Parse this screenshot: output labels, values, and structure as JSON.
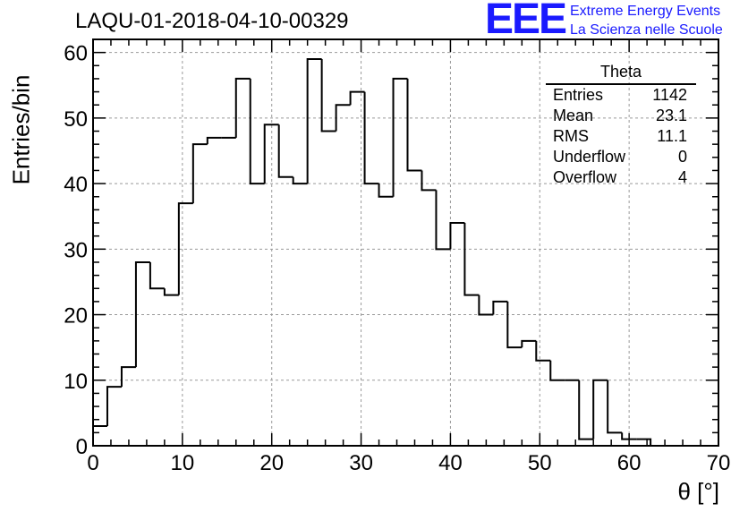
{
  "title": "LAQU-01-2018-04-10-00329",
  "logo": "EEE",
  "org_line1": "Extreme Energy Events",
  "org_line2": "La Scienza nelle Scuole",
  "stats": {
    "name": "Theta",
    "rows": [
      {
        "label": "Entries",
        "value": "1142"
      },
      {
        "label": "Mean",
        "value": "23.1"
      },
      {
        "label": "RMS",
        "value": "11.1"
      },
      {
        "label": "Underflow",
        "value": "0"
      },
      {
        "label": "Overflow",
        "value": "4"
      }
    ]
  },
  "chart_data": {
    "type": "histogram",
    "title": "LAQU-01-2018-04-10-00329",
    "xlabel": "θ [°]",
    "ylabel": "Entries/bin",
    "xlim": [
      0,
      70
    ],
    "ylim": [
      0,
      62
    ],
    "grid": true,
    "bin_width": 1.6,
    "bins": [
      {
        "x0": 0.0,
        "x1": 1.6,
        "count": 3
      },
      {
        "x0": 1.6,
        "x1": 3.2,
        "count": 9
      },
      {
        "x0": 3.2,
        "x1": 4.8,
        "count": 12
      },
      {
        "x0": 4.8,
        "x1": 6.4,
        "count": 28
      },
      {
        "x0": 6.4,
        "x1": 8.0,
        "count": 24
      },
      {
        "x0": 8.0,
        "x1": 9.6,
        "count": 23
      },
      {
        "x0": 9.6,
        "x1": 11.2,
        "count": 37
      },
      {
        "x0": 11.2,
        "x1": 12.8,
        "count": 46
      },
      {
        "x0": 12.8,
        "x1": 14.4,
        "count": 47
      },
      {
        "x0": 14.4,
        "x1": 16.0,
        "count": 47
      },
      {
        "x0": 16.0,
        "x1": 17.6,
        "count": 56
      },
      {
        "x0": 17.6,
        "x1": 19.2,
        "count": 40
      },
      {
        "x0": 19.2,
        "x1": 20.8,
        "count": 49
      },
      {
        "x0": 20.8,
        "x1": 22.4,
        "count": 41
      },
      {
        "x0": 22.4,
        "x1": 24.0,
        "count": 40
      },
      {
        "x0": 24.0,
        "x1": 25.6,
        "count": 59
      },
      {
        "x0": 25.6,
        "x1": 27.2,
        "count": 48
      },
      {
        "x0": 27.2,
        "x1": 28.8,
        "count": 52
      },
      {
        "x0": 28.8,
        "x1": 30.4,
        "count": 54
      },
      {
        "x0": 30.4,
        "x1": 32.0,
        "count": 40
      },
      {
        "x0": 32.0,
        "x1": 33.6,
        "count": 38
      },
      {
        "x0": 33.6,
        "x1": 35.2,
        "count": 56
      },
      {
        "x0": 35.2,
        "x1": 36.8,
        "count": 42
      },
      {
        "x0": 36.8,
        "x1": 38.4,
        "count": 39
      },
      {
        "x0": 38.4,
        "x1": 40.0,
        "count": 30
      },
      {
        "x0": 40.0,
        "x1": 41.6,
        "count": 34
      },
      {
        "x0": 41.6,
        "x1": 43.2,
        "count": 23
      },
      {
        "x0": 43.2,
        "x1": 44.8,
        "count": 20
      },
      {
        "x0": 44.8,
        "x1": 46.4,
        "count": 22
      },
      {
        "x0": 46.4,
        "x1": 48.0,
        "count": 15
      },
      {
        "x0": 48.0,
        "x1": 49.6,
        "count": 16
      },
      {
        "x0": 49.6,
        "x1": 51.2,
        "count": 13
      },
      {
        "x0": 51.2,
        "x1": 52.8,
        "count": 10
      },
      {
        "x0": 52.8,
        "x1": 54.4,
        "count": 10
      },
      {
        "x0": 54.4,
        "x1": 56.0,
        "count": 1
      },
      {
        "x0": 56.0,
        "x1": 57.6,
        "count": 10
      },
      {
        "x0": 57.6,
        "x1": 59.2,
        "count": 2
      },
      {
        "x0": 59.2,
        "x1": 60.8,
        "count": 1
      },
      {
        "x0": 60.8,
        "x1": 62.4,
        "count": 1
      }
    ],
    "xticks": [
      0,
      10,
      20,
      30,
      40,
      50,
      60,
      70
    ],
    "yticks": [
      0,
      10,
      20,
      30,
      40,
      50,
      60
    ]
  }
}
